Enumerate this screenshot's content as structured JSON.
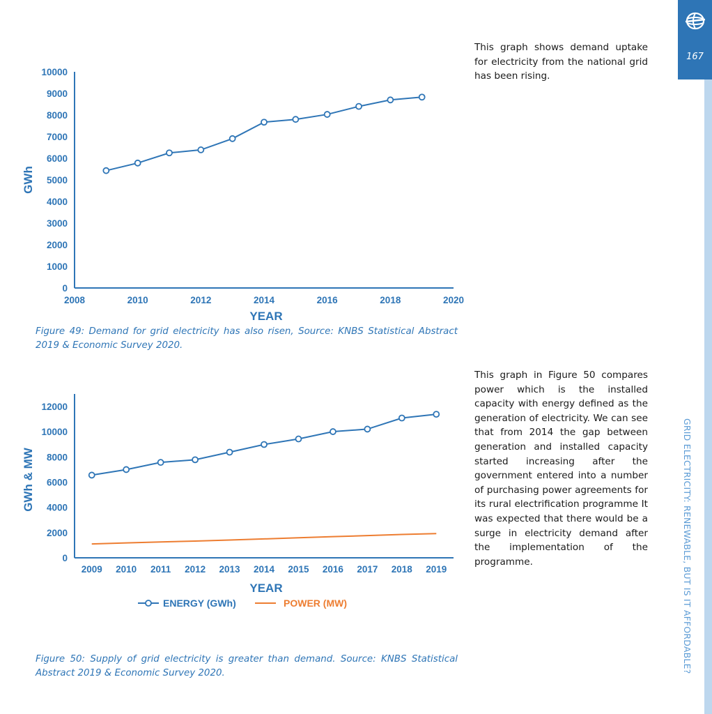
{
  "page": {
    "number": "167",
    "section_title": "GRID ELECTRICITY: RENEWABLE, BUT IS IT AFFORDABLE?",
    "logo_icon": "globe-icon"
  },
  "figure49": {
    "caption": "Figure 49: Demand for grid electricity has also risen, Source: KNBS Statistical Abstract 2019 & Economic Survey 2020.",
    "description": "This graph shows demand uptake for electricity from the national grid has been rising."
  },
  "figure50": {
    "caption": "Figure 50: Supply of grid electricity is greater than demand. Source: KNBS Statistical Abstract 2019 & Economic Survey 2020.",
    "description": "This graph in Figure 50 compares power which is the installed capacity with energy defined as the generation of electricity.  We can see that from 2014 the gap between generation and installed capacity started increasing after the government entered into a number of purchasing power agreements for its rural electrification programme It was expected that there would be a surge in electricity demand after the implementation of the programme."
  },
  "colors": {
    "accent": "#2e75b6",
    "energy": "#2e75b6",
    "power": "#ed7d31",
    "side_strip": "#bdd7ee"
  },
  "chart_data": [
    {
      "type": "line",
      "xlabel": "YEAR",
      "ylabel": "GWh",
      "xlim": [
        2008,
        2020
      ],
      "ylim": [
        0,
        10000
      ],
      "x_ticks": [
        "2008",
        "2010",
        "2012",
        "2014",
        "2016",
        "2018",
        "2020"
      ],
      "y_ticks": [
        "0",
        "1000",
        "2000",
        "3000",
        "4000",
        "5000",
        "6000",
        "7000",
        "8000",
        "9000",
        "10000"
      ],
      "grid": false,
      "legend": false,
      "series": [
        {
          "x": [
            2009,
            2010,
            2011,
            2012,
            2013,
            2014,
            2015,
            2016,
            2017,
            2018,
            2019
          ],
          "y": [
            5430,
            5780,
            6250,
            6390,
            6910,
            7670,
            7800,
            8030,
            8400,
            8700,
            8830
          ],
          "markers": true
        }
      ]
    },
    {
      "type": "line",
      "xlabel": "YEAR",
      "ylabel": "GWh & MW",
      "categories": [
        "2009",
        "2010",
        "2011",
        "2012",
        "2013",
        "2014",
        "2015",
        "2016",
        "2017",
        "2018",
        "2019"
      ],
      "ylim": [
        0,
        13000
      ],
      "y_ticks": [
        "0",
        "2000",
        "4000",
        "6000",
        "8000",
        "10000",
        "12000"
      ],
      "grid": false,
      "legend_position": "bottom",
      "series": [
        {
          "name": "ENERGY (GWh)",
          "values": [
            6560,
            7000,
            7570,
            7780,
            8380,
            8990,
            9430,
            10010,
            10210,
            11090,
            11390
          ],
          "markers": true
        },
        {
          "name": "POWER (MW)",
          "values": [
            1100,
            1180,
            1260,
            1330,
            1410,
            1500,
            1590,
            1680,
            1760,
            1850,
            1920
          ],
          "markers": false
        }
      ]
    }
  ]
}
